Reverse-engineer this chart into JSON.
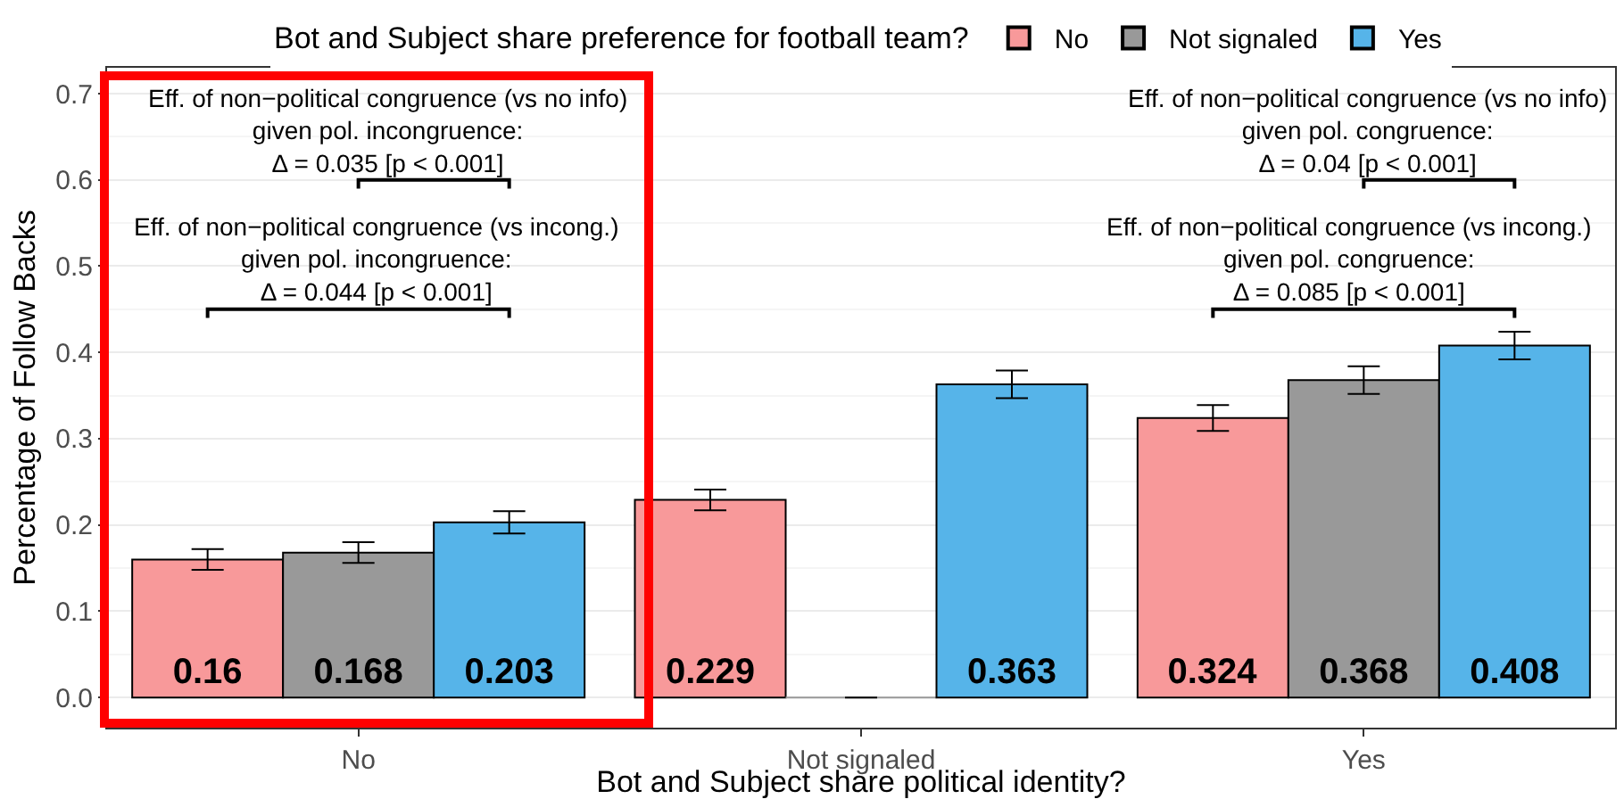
{
  "chart_data": {
    "type": "bar",
    "xlabel": "Bot and Subject share political identity?",
    "ylabel": "Percentage of Follow Backs",
    "legend_title": "Bot and Subject share preference for football team?",
    "categories": [
      "No",
      "Not signaled",
      "Yes"
    ],
    "series": [
      {
        "name": "No",
        "color": "#f8999a",
        "values": [
          0.16,
          0.229,
          0.324
        ],
        "errors": [
          0.012,
          0.012,
          0.015
        ],
        "value_labels": [
          "0.16",
          "0.229",
          "0.324"
        ]
      },
      {
        "name": "Not signaled",
        "color": "#999999",
        "values": [
          0.168,
          0,
          0.368
        ],
        "errors": [
          0.012,
          null,
          0.016
        ],
        "value_labels": [
          "0.168",
          null,
          "0.368"
        ]
      },
      {
        "name": "Yes",
        "color": "#56b4e9",
        "values": [
          0.203,
          0.363,
          0.408
        ],
        "errors": [
          0.013,
          0.016,
          0.016
        ],
        "value_labels": [
          "0.203",
          "0.363",
          "0.408"
        ]
      }
    ],
    "annotations": [
      "Eff. of non−political congruence (vs no info)\ngiven pol. incongruence:\nΔ = 0.035 [p < 0.001]",
      "Eff. of non−political congruence (vs incong.)\ngiven pol. incongruence:\nΔ = 0.044 [p < 0.001]",
      "Eff. of non−political congruence (vs no info)\ngiven pol. congruence:\nΔ = 0.04 [p < 0.001]",
      "Eff. of non−political congruence (vs incong.)\ngiven pol. congruence:\nΔ = 0.085 [p < 0.001]"
    ],
    "ylim": [
      -0.035,
      0.73
    ],
    "yticks": [
      {
        "value": 0,
        "label": "0.0"
      },
      0.1,
      0.2,
      0.3,
      0.4,
      0.5,
      0.6,
      0.7
    ],
    "grid": "y",
    "legend": "top"
  }
}
